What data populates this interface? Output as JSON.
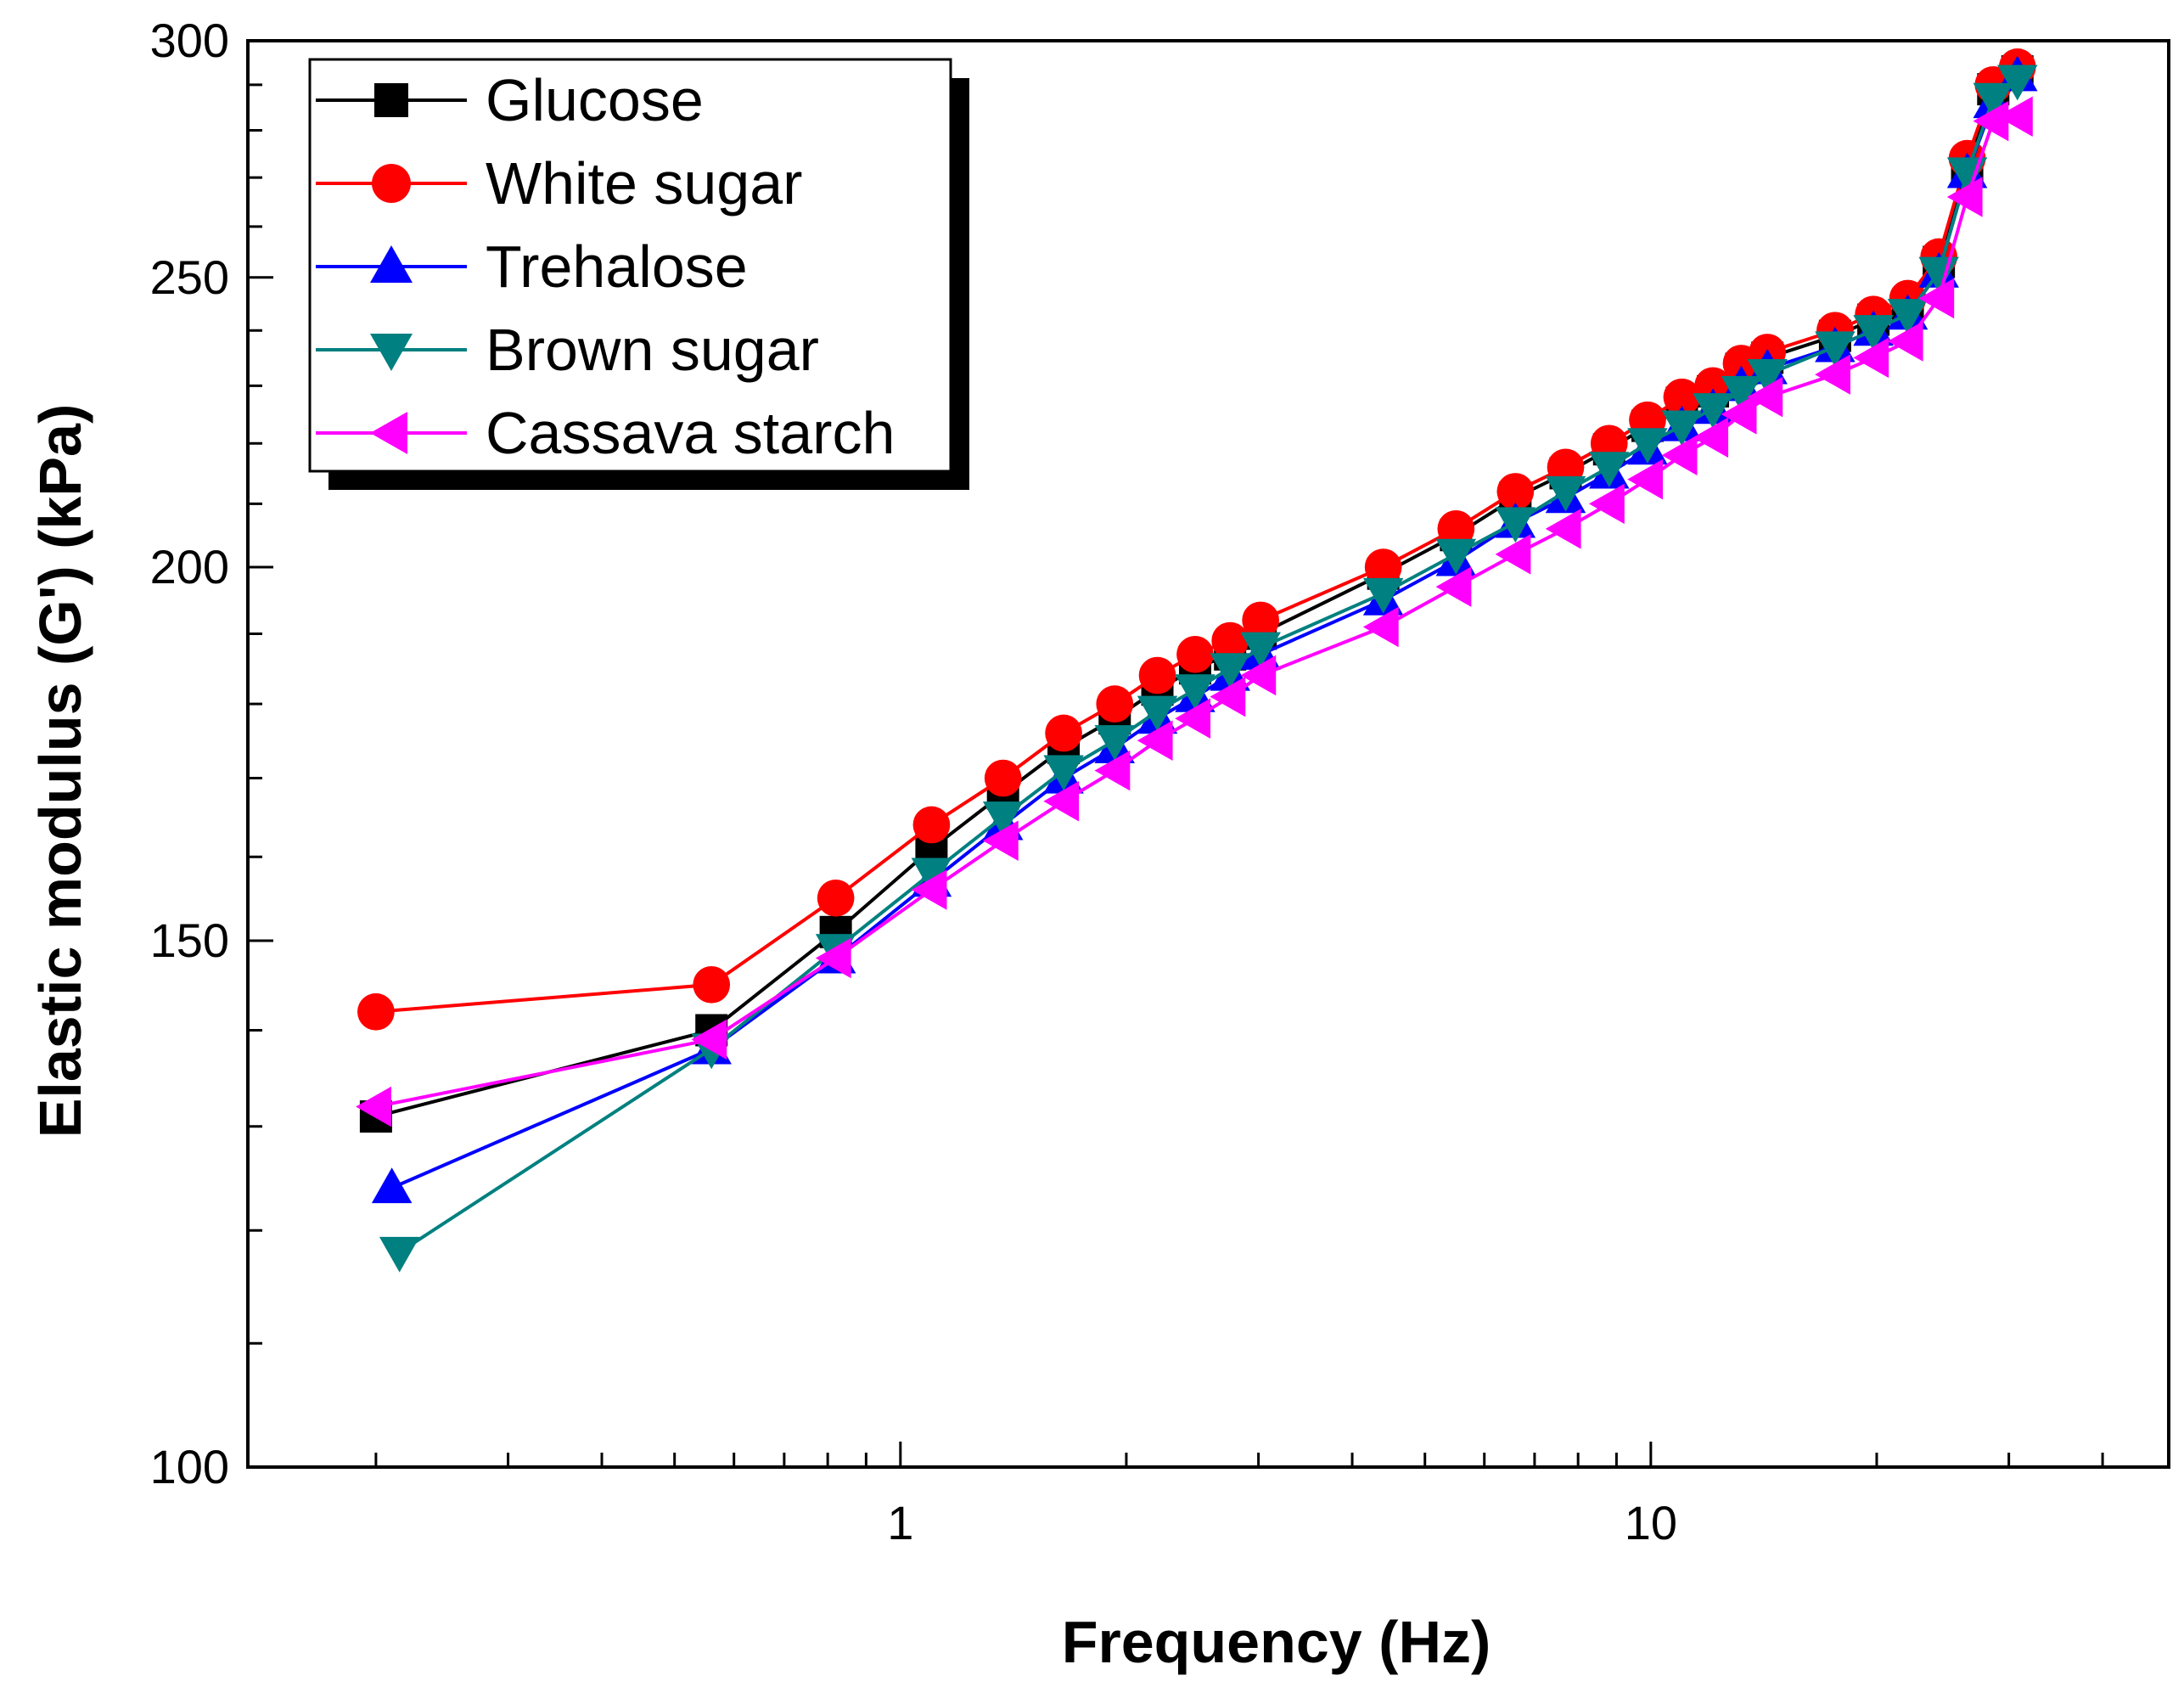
{
  "chart_data": {
    "type": "line",
    "title": "",
    "xlabel": "Frequency (Hz)",
    "ylabel": "Elastic modulus (G') (kPa)",
    "xscale": "log",
    "yscale": "log",
    "xlim": [
      0.135,
      49
    ],
    "ylim": [
      100,
      300
    ],
    "xticks": [
      {
        "value": 1,
        "label": "1"
      },
      {
        "value": 10,
        "label": "10"
      }
    ],
    "yticks": [
      {
        "value": 100,
        "label": "100"
      },
      {
        "value": 150,
        "label": "150"
      },
      {
        "value": 200,
        "label": "200"
      },
      {
        "value": 250,
        "label": "250"
      },
      {
        "value": 300,
        "label": "300"
      }
    ],
    "grid": false,
    "legend_position": "top-left",
    "series": [
      {
        "name": "Glucose",
        "color": "#000000",
        "marker": "square",
        "x": [
          0.2,
          0.56,
          0.82,
          1.1,
          1.37,
          1.65,
          1.93,
          2.2,
          2.47,
          2.75,
          3.02,
          4.4,
          5.5,
          6.6,
          7.7,
          8.8,
          9.9,
          11,
          12.1,
          13.2,
          14.3,
          17.6,
          19.8,
          22,
          24.2,
          26.4,
          28.6,
          30.8
        ],
        "values": [
          131,
          140,
          151,
          161,
          168,
          174,
          178,
          182,
          185,
          187,
          190,
          199,
          205,
          211,
          215,
          219,
          223,
          227,
          229,
          233,
          235,
          239,
          242,
          244,
          253,
          272,
          289,
          293
        ]
      },
      {
        "name": "White sugar",
        "color": "#ff0000",
        "marker": "circle",
        "x": [
          0.2,
          0.56,
          0.82,
          1.1,
          1.37,
          1.65,
          1.93,
          2.2,
          2.47,
          2.75,
          3.02,
          4.4,
          5.5,
          6.6,
          7.7,
          8.8,
          9.9,
          11,
          12.1,
          13.2,
          14.3,
          17.6,
          19.8,
          22,
          24.2,
          26.4,
          28.6,
          30.8
        ],
        "values": [
          142,
          145,
          155,
          164,
          170,
          176,
          180,
          184,
          187,
          189,
          192,
          200,
          206,
          212,
          216,
          220,
          224,
          228,
          230,
          234,
          236,
          240,
          243,
          246,
          254,
          274,
          290,
          294
        ]
      },
      {
        "name": "Trehalose",
        "color": "#0000ff",
        "marker": "triangle-up",
        "x": [
          0.21,
          0.56,
          0.82,
          1.1,
          1.37,
          1.65,
          1.93,
          2.2,
          2.47,
          2.75,
          3.02,
          4.4,
          5.5,
          6.6,
          7.7,
          8.8,
          9.9,
          11,
          12.1,
          13.2,
          14.3,
          17.6,
          19.8,
          22,
          24.2,
          26.4,
          28.6,
          30.8
        ],
        "values": [
          124,
          138,
          148,
          157,
          164,
          170,
          174,
          178,
          181,
          184,
          187,
          195,
          201,
          207,
          211,
          215,
          219,
          223,
          226,
          230,
          233,
          237,
          240,
          243,
          251,
          271,
          286,
          292
        ]
      },
      {
        "name": "Brown sugar",
        "color": "#008080",
        "marker": "triangle-down",
        "x": [
          0.215,
          0.56,
          0.82,
          1.1,
          1.37,
          1.65,
          1.93,
          2.2,
          2.47,
          2.75,
          3.02,
          4.4,
          5.5,
          6.6,
          7.7,
          8.8,
          9.9,
          11,
          12.1,
          13.2,
          14.3,
          17.6,
          19.8,
          22,
          24.2,
          26.4,
          28.6,
          30.8
        ],
        "values": [
          118,
          138,
          149,
          158,
          165,
          171,
          175,
          179,
          182,
          185,
          188,
          196,
          202,
          207,
          212,
          216,
          220,
          223,
          226,
          229,
          232,
          237,
          240,
          243,
          251,
          271,
          287,
          291
        ]
      },
      {
        "name": "Cassava starch",
        "color": "#ff00ff",
        "marker": "triangle-left",
        "x": [
          0.2,
          0.56,
          0.82,
          1.1,
          1.37,
          1.65,
          1.93,
          2.2,
          2.47,
          2.75,
          3.02,
          4.4,
          5.5,
          6.6,
          7.7,
          8.8,
          9.9,
          11,
          12.1,
          13.2,
          14.3,
          17.6,
          19.8,
          22,
          24.2,
          26.4,
          28.6,
          30.8
        ],
        "values": [
          132,
          139,
          148,
          156,
          162,
          167,
          171,
          175,
          178,
          181,
          184,
          191,
          197,
          202,
          206,
          210,
          214,
          218,
          221,
          225,
          228,
          232,
          235,
          238,
          246,
          266,
          282,
          283
        ]
      }
    ]
  }
}
